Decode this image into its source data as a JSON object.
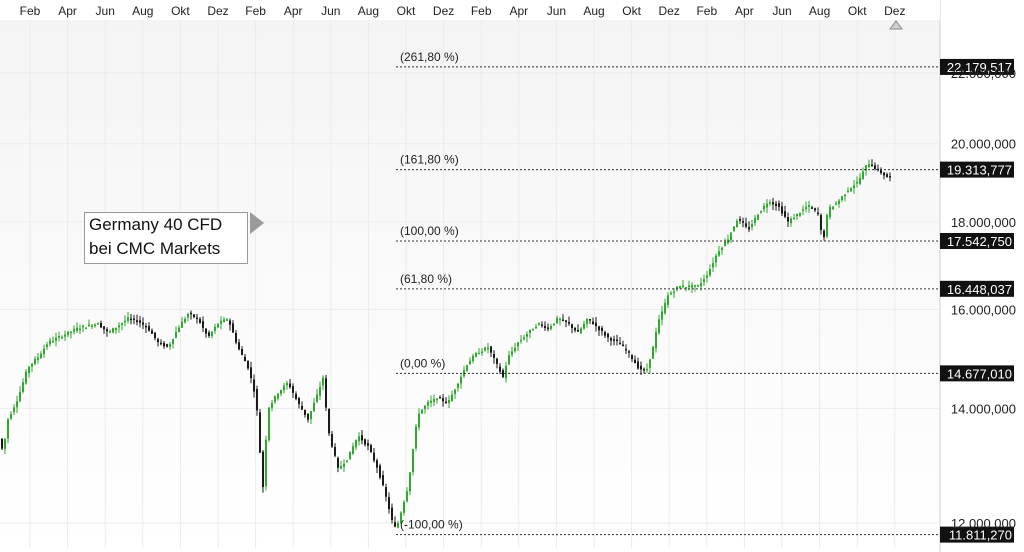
{
  "chart_data": {
    "type": "candlestick",
    "instrument_label": [
      "Germany 40 CFD",
      "bei CMC Markets"
    ],
    "x_tick_labels": [
      "Feb",
      "Apr",
      "Jun",
      "Aug",
      "Okt",
      "Dez",
      "Feb",
      "Apr",
      "Jun",
      "Aug",
      "Okt",
      "Dez",
      "Feb",
      "Apr",
      "Jun",
      "Aug",
      "Okt",
      "Dez",
      "Feb",
      "Apr",
      "Jun",
      "Aug",
      "Okt",
      "Dez"
    ],
    "y_tick_labels": [
      "22.000,000",
      "20.000,000",
      "18.000,000",
      "16.000,000",
      "14.000,000",
      "12.000,000"
    ],
    "y_ticks": [
      22000,
      20000,
      18000,
      16000,
      14000,
      12000
    ],
    "y_scale": "log",
    "ylim": [
      11600,
      23500
    ],
    "fib_levels": [
      {
        "label": "(261,80 %)",
        "value": 22179.517,
        "value_label": "22.179,517"
      },
      {
        "label": "(161,80 %)",
        "value": 19313.777,
        "value_label": "19.313,777"
      },
      {
        "label": "(100,00 %)",
        "value": 17542.75,
        "value_label": "17.542,750"
      },
      {
        "label": "(61,80 %)",
        "value": 16448.037,
        "value_label": "16.448,037"
      },
      {
        "label": "(0,00 %)",
        "value": 14677.01,
        "value_label": "14.677,010"
      },
      {
        "label": "(-100,00 %)",
        "value": 11811.27,
        "value_label": "11.811,270"
      }
    ],
    "grid": true,
    "colors": {
      "up": "#2eaa2e",
      "down": "#1a1a1a",
      "level_line": "#333333",
      "value_tag_bg": "#111111",
      "value_tag_text": "#ffffff"
    },
    "path_points": [
      [
        0,
        13500
      ],
      [
        5,
        13200
      ],
      [
        10,
        13800
      ],
      [
        20,
        14200
      ],
      [
        30,
        14800
      ],
      [
        40,
        15000
      ],
      [
        50,
        15300
      ],
      [
        60,
        15400
      ],
      [
        70,
        15500
      ],
      [
        80,
        15600
      ],
      [
        90,
        15650
      ],
      [
        100,
        15700
      ],
      [
        110,
        15500
      ],
      [
        120,
        15650
      ],
      [
        130,
        15800
      ],
      [
        140,
        15750
      ],
      [
        150,
        15600
      ],
      [
        160,
        15300
      ],
      [
        170,
        15200
      ],
      [
        180,
        15600
      ],
      [
        190,
        15900
      ],
      [
        200,
        15800
      ],
      [
        210,
        15400
      ],
      [
        220,
        15700
      ],
      [
        230,
        15800
      ],
      [
        240,
        15200
      ],
      [
        250,
        14800
      ],
      [
        258,
        14200
      ],
      [
        262,
        13200
      ],
      [
        265,
        12600
      ],
      [
        270,
        14000
      ],
      [
        280,
        14300
      ],
      [
        290,
        14500
      ],
      [
        300,
        14100
      ],
      [
        310,
        13800
      ],
      [
        320,
        14300
      ],
      [
        325,
        14600
      ],
      [
        330,
        13600
      ],
      [
        340,
        12900
      ],
      [
        350,
        13100
      ],
      [
        360,
        13500
      ],
      [
        370,
        13300
      ],
      [
        380,
        12900
      ],
      [
        390,
        12300
      ],
      [
        396,
        11900
      ],
      [
        400,
        12000
      ],
      [
        410,
        12600
      ],
      [
        420,
        13900
      ],
      [
        430,
        14100
      ],
      [
        440,
        14200
      ],
      [
        450,
        14100
      ],
      [
        460,
        14500
      ],
      [
        470,
        14900
      ],
      [
        480,
        15100
      ],
      [
        490,
        15200
      ],
      [
        500,
        14800
      ],
      [
        505,
        14600
      ],
      [
        510,
        15000
      ],
      [
        520,
        15300
      ],
      [
        530,
        15500
      ],
      [
        540,
        15700
      ],
      [
        550,
        15600
      ],
      [
        560,
        15800
      ],
      [
        570,
        15700
      ],
      [
        580,
        15500
      ],
      [
        590,
        15800
      ],
      [
        600,
        15600
      ],
      [
        610,
        15400
      ],
      [
        620,
        15300
      ],
      [
        630,
        15100
      ],
      [
        640,
        14800
      ],
      [
        648,
        14700
      ],
      [
        655,
        15200
      ],
      [
        660,
        15700
      ],
      [
        670,
        16300
      ],
      [
        680,
        16500
      ],
      [
        690,
        16500
      ],
      [
        700,
        16500
      ],
      [
        710,
        16800
      ],
      [
        720,
        17300
      ],
      [
        730,
        17600
      ],
      [
        740,
        18100
      ],
      [
        750,
        17800
      ],
      [
        760,
        18200
      ],
      [
        770,
        18500
      ],
      [
        780,
        18400
      ],
      [
        790,
        18000
      ],
      [
        800,
        18200
      ],
      [
        810,
        18400
      ],
      [
        820,
        18200
      ],
      [
        825,
        17500
      ],
      [
        830,
        18300
      ],
      [
        840,
        18500
      ],
      [
        850,
        18800
      ],
      [
        860,
        19000
      ],
      [
        870,
        19500
      ],
      [
        880,
        19300
      ],
      [
        885,
        19200
      ],
      [
        890,
        19100
      ]
    ]
  }
}
